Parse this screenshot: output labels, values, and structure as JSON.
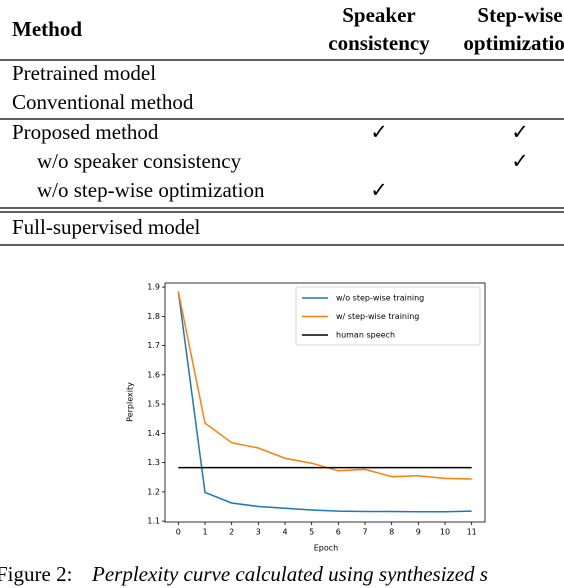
{
  "table": {
    "header": {
      "method": "Method",
      "speaker": [
        "Speaker",
        "consistency"
      ],
      "stepwise": [
        "Step-wise",
        "optimization"
      ]
    },
    "rows": [
      {
        "label": "Pretrained model"
      },
      {
        "label": "Conventional method"
      },
      {
        "label": "Proposed method",
        "speaker": "✓",
        "stepwise": "✓"
      },
      {
        "label": "w/o speaker consistency",
        "stepwise": "✓"
      },
      {
        "label": "w/o step-wise optimization",
        "speaker": "✓"
      },
      {
        "label": "Full-supervised model"
      }
    ]
  },
  "chart_data": {
    "type": "line",
    "xlabel": "Epoch",
    "ylabel": "Perplexity",
    "x": [
      0,
      1,
      2,
      3,
      4,
      5,
      6,
      7,
      8,
      9,
      10,
      11
    ],
    "series": [
      {
        "name": "w/o step-wise training",
        "color": "#1f77b4",
        "values": [
          1.885,
          1.198,
          1.162,
          1.15,
          1.144,
          1.138,
          1.134,
          1.133,
          1.133,
          1.132,
          1.132,
          1.134
        ]
      },
      {
        "name": "w/ step-wise training",
        "color": "#ff7f0e",
        "values": [
          1.885,
          1.435,
          1.368,
          1.35,
          1.315,
          1.298,
          1.272,
          1.277,
          1.252,
          1.255,
          1.246,
          1.244
        ]
      },
      {
        "name": "human speech",
        "color": "#000000",
        "values": [
          1.283,
          1.283,
          1.283,
          1.283,
          1.283,
          1.283,
          1.283,
          1.283,
          1.283,
          1.283,
          1.283,
          1.283
        ]
      }
    ],
    "xlim": [
      -0.5,
      11.5
    ],
    "ylim": [
      1.097,
      1.914
    ],
    "xticks": [
      0,
      1,
      2,
      3,
      4,
      5,
      6,
      7,
      8,
      9,
      10,
      11
    ],
    "yticks": [
      1.1,
      1.2,
      1.3,
      1.4,
      1.5,
      1.6,
      1.7,
      1.8,
      1.9
    ],
    "legend": "upper right",
    "grid": false
  },
  "caption": {
    "label": "Figure 2:",
    "text": "Perplexity curve calculated using synthesized s"
  }
}
